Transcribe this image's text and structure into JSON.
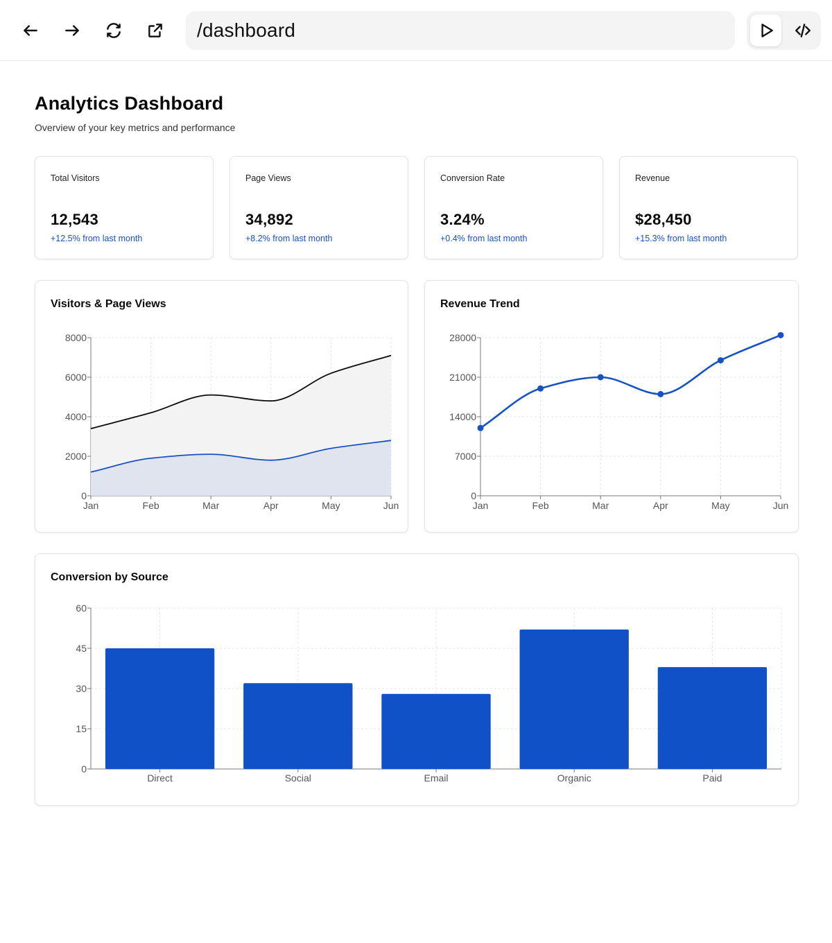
{
  "browser": {
    "url": "/dashboard",
    "icons": [
      "arrow-left-icon",
      "arrow-right-icon",
      "refresh-icon",
      "external-link-icon",
      "play-icon",
      "code-icon"
    ]
  },
  "header": {
    "title": "Analytics Dashboard",
    "subtitle": "Overview of your key metrics and performance"
  },
  "stats": [
    {
      "label": "Total Visitors",
      "value": "12,543",
      "change": "+12.5% from last month"
    },
    {
      "label": "Page Views",
      "value": "34,892",
      "change": "+8.2% from last month"
    },
    {
      "label": "Conversion Rate",
      "value": "3.24%",
      "change": "+0.4% from last month"
    },
    {
      "label": "Revenue",
      "value": "$28,450",
      "change": "+15.3% from last month"
    }
  ],
  "colors": {
    "accent": "#1652c4",
    "dark": "#0a0a0a",
    "area_gray": "#f2f2f2",
    "area_blue": "#dde3ee"
  },
  "chart_data": [
    {
      "type": "area",
      "title": "Visitors & Page Views",
      "categories": [
        "Jan",
        "Feb",
        "Mar",
        "Apr",
        "May",
        "Jun"
      ],
      "series": [
        {
          "name": "Page Views",
          "values": [
            3400,
            4200,
            5100,
            4800,
            6200,
            7100
          ]
        },
        {
          "name": "Visitors",
          "values": [
            1200,
            1900,
            2100,
            1800,
            2400,
            2800
          ]
        }
      ],
      "ylim": [
        0,
        8000
      ],
      "yticks": [
        0,
        2000,
        4000,
        6000,
        8000
      ],
      "grid": true
    },
    {
      "type": "line",
      "title": "Revenue Trend",
      "categories": [
        "Jan",
        "Feb",
        "Mar",
        "Apr",
        "May",
        "Jun"
      ],
      "values": [
        12000,
        19000,
        21000,
        18000,
        24000,
        28450
      ],
      "ylim": [
        0,
        28000
      ],
      "yticks": [
        0,
        7000,
        14000,
        21000,
        28000
      ],
      "grid": true
    },
    {
      "type": "bar",
      "title": "Conversion by Source",
      "categories": [
        "Direct",
        "Social",
        "Email",
        "Organic",
        "Paid"
      ],
      "values": [
        45,
        32,
        28,
        52,
        38
      ],
      "ylim": [
        0,
        60
      ],
      "yticks": [
        0,
        15,
        30,
        45,
        60
      ],
      "grid": true
    }
  ]
}
